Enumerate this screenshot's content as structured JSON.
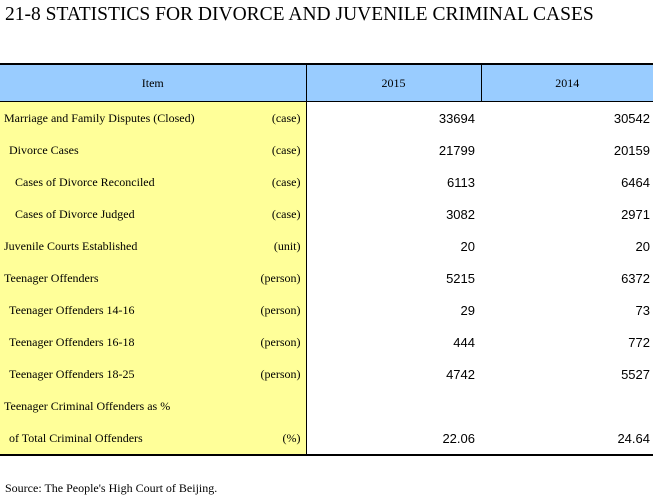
{
  "title": "21-8  STATISTICS FOR DIVORCE AND JUVENILE CRIMINAL CASES",
  "table": {
    "headers": {
      "item": "Item",
      "y1": "2015",
      "y2": "2014"
    },
    "rows": [
      {
        "label": "Marriage and Family Disputes (Closed)",
        "unit": "(case)",
        "v2015": "33694",
        "v2014": "30542",
        "indent": 0
      },
      {
        "label": "Divorce Cases",
        "unit": "(case)",
        "v2015": "21799",
        "v2014": "20159",
        "indent": 1
      },
      {
        "label": "Cases of Divorce Reconciled",
        "unit": "(case)",
        "v2015": "6113",
        "v2014": "6464",
        "indent": 2
      },
      {
        "label": "Cases of Divorce Judged",
        "unit": "(case)",
        "v2015": "3082",
        "v2014": "2971",
        "indent": 2
      },
      {
        "label": "Juvenile Courts Established",
        "unit": "(unit)",
        "v2015": "20",
        "v2014": "20",
        "indent": 0
      },
      {
        "label": "Teenager Offenders",
        "unit": "(person)",
        "v2015": "5215",
        "v2014": "6372",
        "indent": 0
      },
      {
        "label": "Teenager Offenders  14-16",
        "unit": "(person)",
        "v2015": "29",
        "v2014": "73",
        "indent": 1
      },
      {
        "label": "Teenager Offenders  16-18",
        "unit": "(person)",
        "v2015": "444",
        "v2014": "772",
        "indent": 1
      },
      {
        "label": "Teenager Offenders  18-25",
        "unit": "(person)",
        "v2015": "4742",
        "v2014": "5527",
        "indent": 1
      },
      {
        "label": "Teenager Criminal Offenders as %",
        "unit": "",
        "v2015": "",
        "v2014": "",
        "indent": 0
      },
      {
        "label": "of Total Criminal Offenders",
        "unit": "(%)",
        "v2015": "22.06",
        "v2014": "24.64",
        "indent": 1
      }
    ]
  },
  "source": "Source: The People's High Court of Beijing."
}
